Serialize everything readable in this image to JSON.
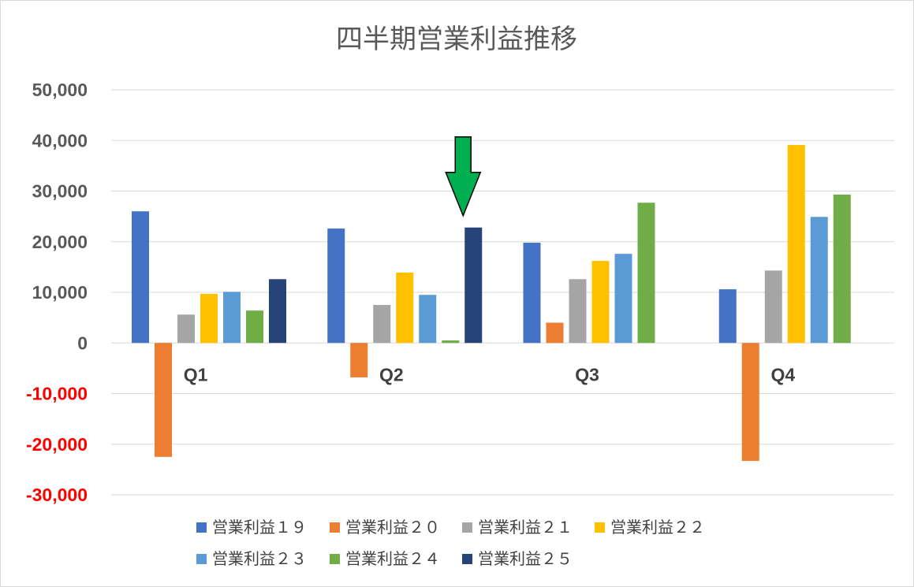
{
  "chart_data": {
    "type": "bar",
    "title": "四半期営業利益推移",
    "categories": [
      "Q1",
      "Q2",
      "Q3",
      "Q4"
    ],
    "series": [
      {
        "name": "営業利益１９",
        "color": "#4472C4",
        "values": [
          26000,
          22600,
          19800,
          10600
        ]
      },
      {
        "name": "営業利益２０",
        "color": "#ED7D31",
        "values": [
          -22500,
          -6800,
          4000,
          -23300
        ]
      },
      {
        "name": "営業利益２１",
        "color": "#A5A5A5",
        "values": [
          5600,
          7500,
          12600,
          14300
        ]
      },
      {
        "name": "営業利益２２",
        "color": "#FFC000",
        "values": [
          9700,
          13900,
          16200,
          39100
        ]
      },
      {
        "name": "営業利益２３",
        "color": "#5B9BD5",
        "values": [
          10100,
          9500,
          17600,
          24900
        ]
      },
      {
        "name": "営業利益２４",
        "color": "#70AD47",
        "values": [
          6400,
          500,
          27700,
          29300
        ]
      },
      {
        "name": "営業利益２５",
        "color": "#264478",
        "values": [
          12600,
          22800,
          null,
          null
        ]
      }
    ],
    "ylim": [
      -30000,
      50000
    ],
    "ytick_step": 10000,
    "ytick_labels": [
      "-30,000",
      "-20,000",
      "-10,000",
      "0",
      "10,000",
      "20,000",
      "30,000",
      "40,000",
      "50,000"
    ],
    "negative_tick_color": "#FF0000",
    "positive_tick_color": "#595959",
    "grid": true,
    "legend_position": "bottom",
    "annotation": {
      "type": "arrow",
      "color": "#00B050",
      "points_to": {
        "category": "Q2",
        "series": "営業利益２５"
      }
    }
  }
}
